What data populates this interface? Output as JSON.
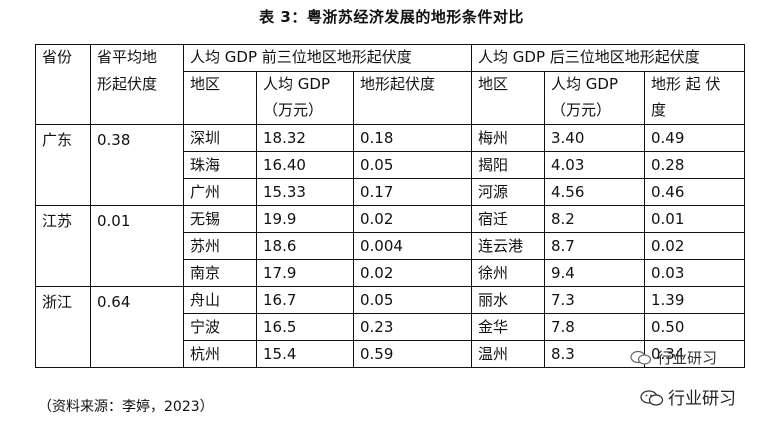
{
  "title": "表 3：粤浙苏经济发展的地形条件对比",
  "headers": {
    "province": "省份",
    "avg_relief_1": "省平均地",
    "avg_relief_2": "形起伏度",
    "top3_group": "人均 GDP 前三位地区地形起伏度",
    "bottom3_group": "人均 GDP 后三位地区地形起伏度",
    "region": "地区",
    "gdp_1": "人均 GDP",
    "gdp_2": "（万元）",
    "relief": "地形起伏度",
    "relief_spaced_1": "地形 起 伏",
    "relief_spaced_2": "度"
  },
  "rows": [
    {
      "province": "广东",
      "avg": "0.38",
      "items": [
        {
          "top_region": "深圳",
          "top_gdp": "18.32",
          "top_relief": "0.18",
          "bot_region": "梅州",
          "bot_gdp": "3.40",
          "bot_relief": "0.49"
        },
        {
          "top_region": "珠海",
          "top_gdp": "16.40",
          "top_relief": "0.05",
          "bot_region": "揭阳",
          "bot_gdp": "4.03",
          "bot_relief": "0.28"
        },
        {
          "top_region": "广州",
          "top_gdp": "15.33",
          "top_relief": "0.17",
          "bot_region": "河源",
          "bot_gdp": "4.56",
          "bot_relief": "0.46"
        }
      ]
    },
    {
      "province": "江苏",
      "avg": "0.01",
      "items": [
        {
          "top_region": "无锡",
          "top_gdp": "19.9",
          "top_relief": "0.02",
          "bot_region": "宿迁",
          "bot_gdp": "8.2",
          "bot_relief": "0.01"
        },
        {
          "top_region": "苏州",
          "top_gdp": "18.6",
          "top_relief": "0.004",
          "bot_region": "连云港",
          "bot_gdp": "8.7",
          "bot_relief": "0.02"
        },
        {
          "top_region": "南京",
          "top_gdp": "17.9",
          "top_relief": "0.02",
          "bot_region": "徐州",
          "bot_gdp": "9.4",
          "bot_relief": "0.03"
        }
      ]
    },
    {
      "province": "浙江",
      "avg": "0.64",
      "items": [
        {
          "top_region": "舟山",
          "top_gdp": "16.7",
          "top_relief": "0.05",
          "bot_region": "丽水",
          "bot_gdp": "7.3",
          "bot_relief": "1.39"
        },
        {
          "top_region": "宁波",
          "top_gdp": "16.5",
          "top_relief": "0.23",
          "bot_region": "金华",
          "bot_gdp": "7.8",
          "bot_relief": "0.50"
        },
        {
          "top_region": "杭州",
          "top_gdp": "15.4",
          "top_relief": "0.59",
          "bot_region": "温州",
          "bot_gdp": "8.3",
          "bot_relief": "0.34"
        }
      ]
    }
  ],
  "source": "（资料来源：李婷，2023）",
  "watermark": "行业研习"
}
